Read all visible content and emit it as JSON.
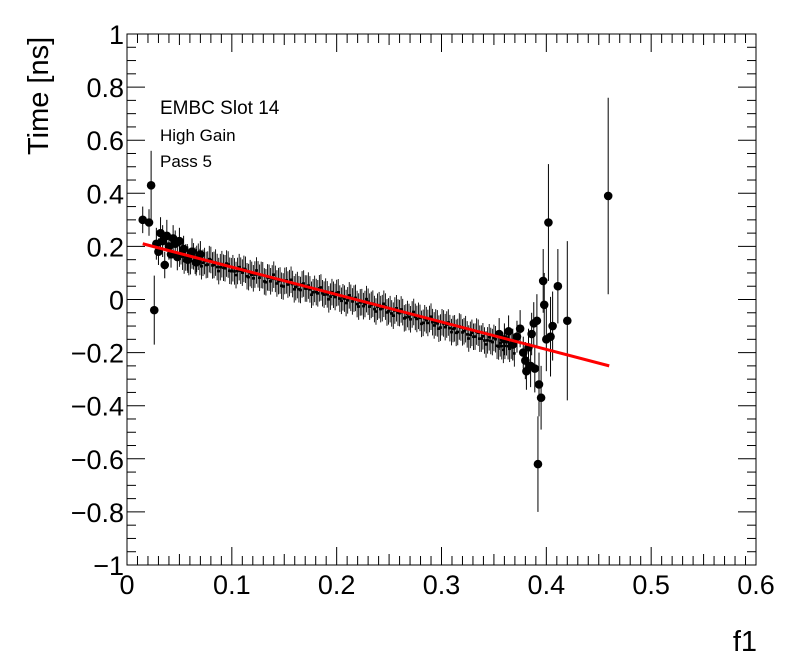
{
  "chart_data": {
    "type": "scatter",
    "title": "",
    "xlabel": "f1",
    "ylabel": "Time [ns]",
    "xlim": [
      0,
      0.6
    ],
    "ylim": [
      -1,
      1
    ],
    "x_ticks": [
      {
        "value": 0,
        "label": "0"
      },
      {
        "value": 0.1,
        "label": "0.1"
      },
      {
        "value": 0.2,
        "label": "0.2"
      },
      {
        "value": 0.3,
        "label": "0.3"
      },
      {
        "value": 0.4,
        "label": "0.4"
      },
      {
        "value": 0.5,
        "label": "0.5"
      },
      {
        "value": 0.6,
        "label": "0.6"
      }
    ],
    "y_ticks": [
      {
        "value": 1,
        "label": "1"
      },
      {
        "value": 0.8,
        "label": "0.8"
      },
      {
        "value": 0.6,
        "label": "0.6"
      },
      {
        "value": 0.4,
        "label": "0.4"
      },
      {
        "value": 0.2,
        "label": "0.2"
      },
      {
        "value": 0,
        "label": "0"
      },
      {
        "value": -0.2,
        "label": "−0.2"
      },
      {
        "value": -0.4,
        "label": "−0.4"
      },
      {
        "value": -0.6,
        "label": "−0.6"
      },
      {
        "value": -0.8,
        "label": "−0.8"
      },
      {
        "value": -1,
        "label": "−1"
      }
    ],
    "annotations": [
      "EMBC Slot 14",
      "High Gain",
      "Pass 5"
    ],
    "grid": false,
    "marker_color": "#000000",
    "fit_color": "#ff0000",
    "dense_band": {
      "x_start": 0.05,
      "x_end": 0.37,
      "step": 0.0015,
      "y_at_start": 0.165,
      "y_at_end": -0.16,
      "error": 0.05
    },
    "points": [
      {
        "x": 0.015,
        "y": 0.3,
        "err": 0.05
      },
      {
        "x": 0.021,
        "y": 0.29,
        "err": 0.05
      },
      {
        "x": 0.023,
        "y": 0.43,
        "err": 0.13
      },
      {
        "x": 0.026,
        "y": -0.04,
        "err": 0.13
      },
      {
        "x": 0.028,
        "y": 0.21,
        "err": 0.06
      },
      {
        "x": 0.03,
        "y": 0.18,
        "err": 0.05
      },
      {
        "x": 0.032,
        "y": 0.25,
        "err": 0.06
      },
      {
        "x": 0.034,
        "y": 0.22,
        "err": 0.06
      },
      {
        "x": 0.036,
        "y": 0.13,
        "err": 0.05
      },
      {
        "x": 0.038,
        "y": 0.24,
        "err": 0.06
      },
      {
        "x": 0.04,
        "y": 0.2,
        "err": 0.05
      },
      {
        "x": 0.042,
        "y": 0.17,
        "err": 0.05
      },
      {
        "x": 0.044,
        "y": 0.23,
        "err": 0.05
      },
      {
        "x": 0.046,
        "y": 0.21,
        "err": 0.05
      },
      {
        "x": 0.048,
        "y": 0.16,
        "err": 0.05
      },
      {
        "x": 0.05,
        "y": 0.22,
        "err": 0.05
      },
      {
        "x": 0.054,
        "y": 0.19,
        "err": 0.05
      },
      {
        "x": 0.058,
        "y": 0.15,
        "err": 0.05
      },
      {
        "x": 0.062,
        "y": 0.18,
        "err": 0.05
      },
      {
        "x": 0.066,
        "y": 0.14,
        "err": 0.05
      },
      {
        "x": 0.07,
        "y": 0.17,
        "err": 0.05
      },
      {
        "x": 0.355,
        "y": -0.13,
        "err": 0.06
      },
      {
        "x": 0.36,
        "y": -0.15,
        "err": 0.06
      },
      {
        "x": 0.364,
        "y": -0.12,
        "err": 0.06
      },
      {
        "x": 0.368,
        "y": -0.17,
        "err": 0.06
      },
      {
        "x": 0.372,
        "y": -0.14,
        "err": 0.06
      },
      {
        "x": 0.375,
        "y": -0.11,
        "err": 0.07
      },
      {
        "x": 0.378,
        "y": -0.2,
        "err": 0.06
      },
      {
        "x": 0.38,
        "y": -0.23,
        "err": 0.07
      },
      {
        "x": 0.381,
        "y": -0.27,
        "err": 0.07
      },
      {
        "x": 0.383,
        "y": -0.18,
        "err": 0.07
      },
      {
        "x": 0.385,
        "y": -0.25,
        "err": 0.08
      },
      {
        "x": 0.386,
        "y": -0.13,
        "err": 0.08
      },
      {
        "x": 0.388,
        "y": -0.09,
        "err": 0.08
      },
      {
        "x": 0.389,
        "y": -0.26,
        "err": 0.09
      },
      {
        "x": 0.391,
        "y": -0.08,
        "err": 0.1
      },
      {
        "x": 0.392,
        "y": -0.62,
        "err": 0.18
      },
      {
        "x": 0.393,
        "y": -0.32,
        "err": 0.12
      },
      {
        "x": 0.395,
        "y": -0.37,
        "err": 0.12
      },
      {
        "x": 0.397,
        "y": 0.07,
        "err": 0.12
      },
      {
        "x": 0.398,
        "y": -0.02,
        "err": 0.12
      },
      {
        "x": 0.4,
        "y": -0.15,
        "err": 0.12
      },
      {
        "x": 0.402,
        "y": 0.29,
        "err": 0.22
      },
      {
        "x": 0.404,
        "y": -0.14,
        "err": 0.15
      },
      {
        "x": 0.406,
        "y": -0.1,
        "err": 0.13
      },
      {
        "x": 0.411,
        "y": 0.05,
        "err": 0.14
      },
      {
        "x": 0.42,
        "y": -0.08,
        "err": 0.3
      },
      {
        "x": 0.459,
        "y": 0.39,
        "err": 0.37
      }
    ],
    "fit": {
      "x_start": 0.015,
      "x_end": 0.46,
      "y_start": 0.21,
      "y_end": -0.25
    }
  }
}
